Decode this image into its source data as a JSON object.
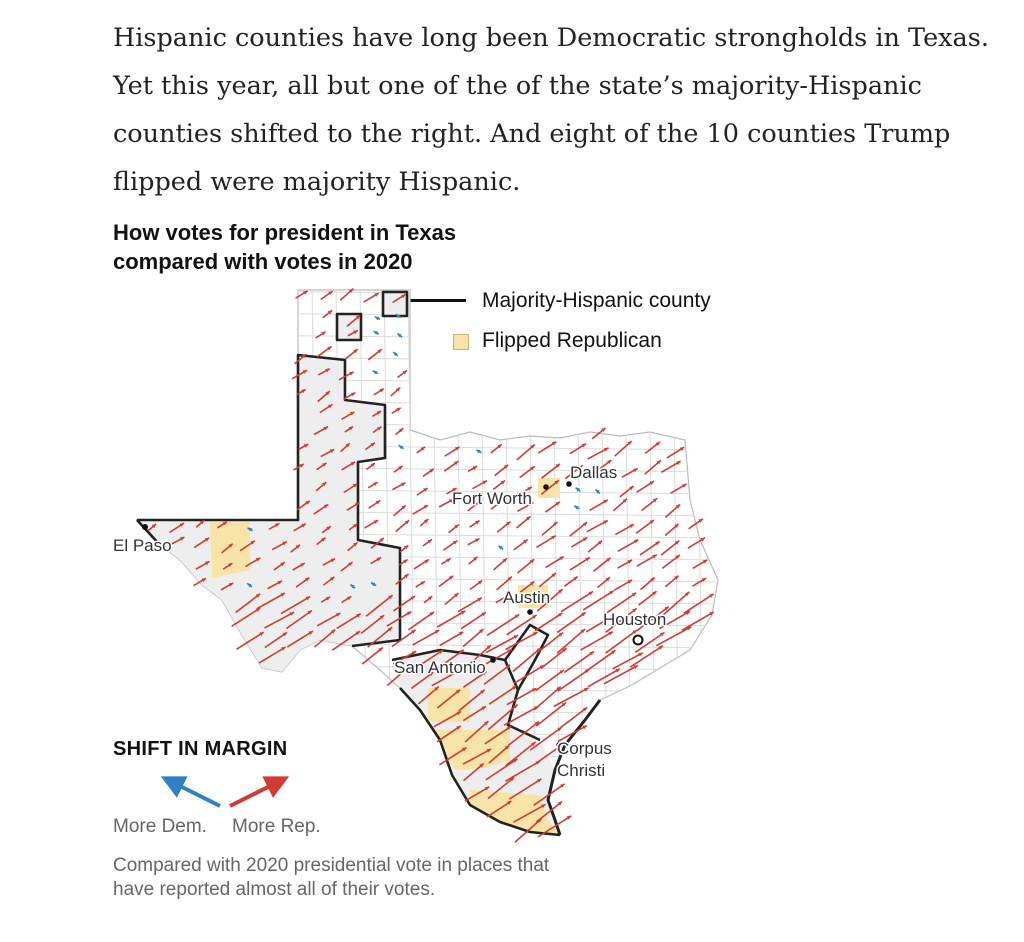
{
  "intro": {
    "text": "Hispanic counties have long been Democratic strongholds in Texas. Yet this year, all but one of the of the state’s majority-Hispanic counties shifted to the right. And eight of the 10 counties Trump flipped were majority Hispanic."
  },
  "chart": {
    "title": "How votes for president in Texas compared with votes in 2020"
  },
  "legend": {
    "majority_hispanic": "Majority-Hispanic county",
    "flipped": "Flipped Republican"
  },
  "cities": {
    "el_paso": "El Paso",
    "fort_worth": "Fort Worth",
    "dallas": "Dallas",
    "austin": "Austin",
    "houston": "Houston",
    "san_antonio": "San Antonio",
    "corpus_christi_1": "Corpus",
    "corpus_christi_2": "Christi"
  },
  "shift_legend": {
    "title": "SHIFT IN MARGIN",
    "more_dem": "More Dem.",
    "more_rep": "More Rep."
  },
  "note": {
    "text": "Compared with 2020 presidential vote in places that have reported almost all of their votes."
  },
  "colors": {
    "rep_arrow": "#d03b33",
    "dem_arrow": "#2f80c4",
    "flipped_fill": "#f7e4a6",
    "hispanic_fill": "#eeeeee",
    "state_fill": "#ffffff",
    "county_lines": "#d9d9d9",
    "hispanic_outline": "#222222"
  }
}
